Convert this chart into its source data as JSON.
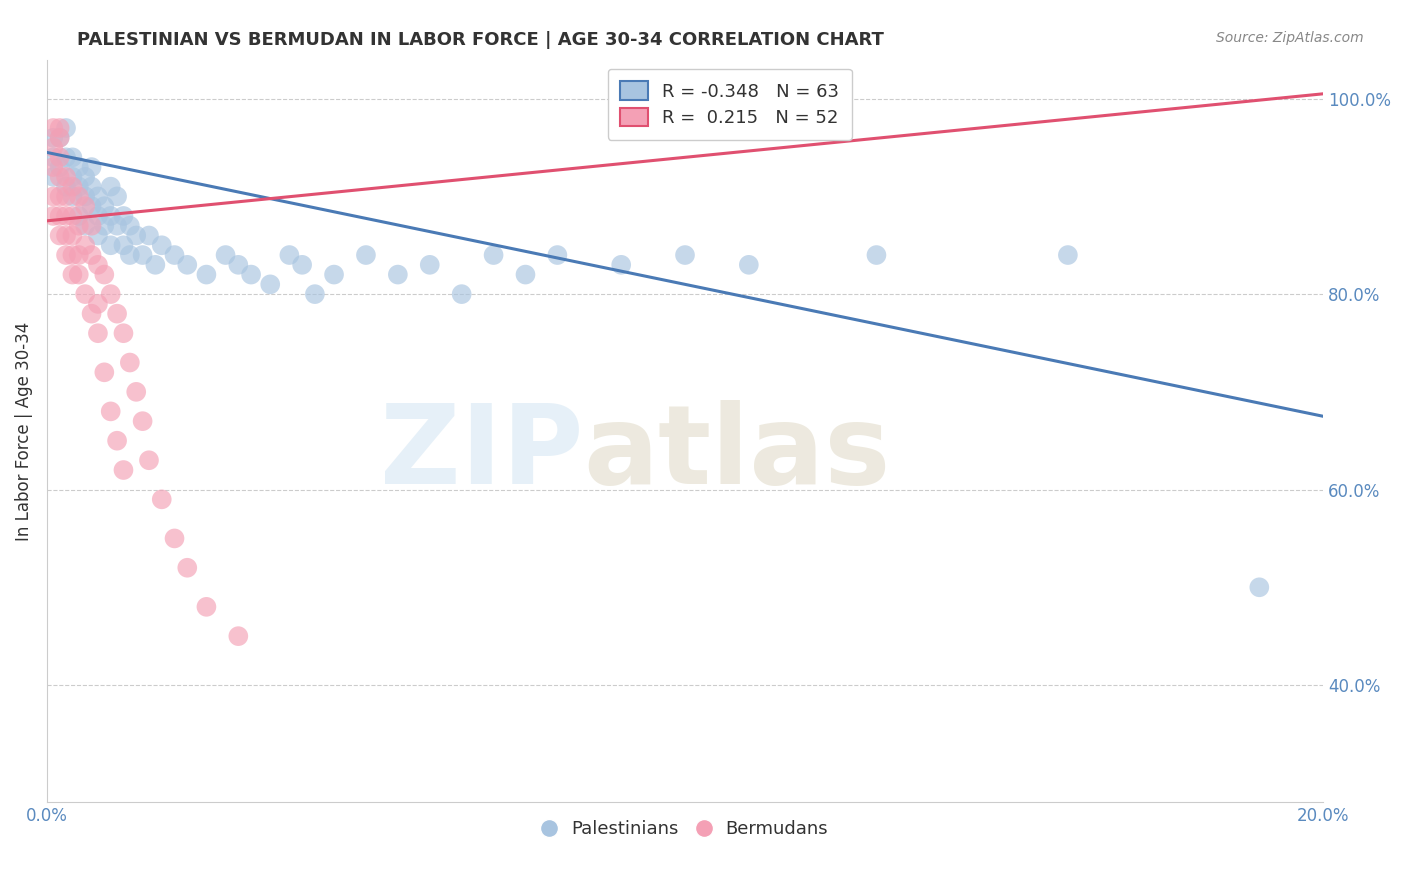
{
  "title": "PALESTINIAN VS BERMUDAN IN LABOR FORCE | AGE 30-34 CORRELATION CHART",
  "source": "Source: ZipAtlas.com",
  "ylabel": "In Labor Force | Age 30-34",
  "xlim": [
    0.0,
    0.2
  ],
  "ylim": [
    0.28,
    1.04
  ],
  "yticks": [
    0.4,
    0.6,
    0.8,
    1.0
  ],
  "yticklabels": [
    "40.0%",
    "60.0%",
    "80.0%",
    "100.0%"
  ],
  "blue_R": -0.348,
  "blue_N": 63,
  "pink_R": 0.215,
  "pink_N": 52,
  "blue_color": "#a8c4e0",
  "pink_color": "#f4a0b5",
  "blue_line_color": "#4a7ab5",
  "pink_line_color": "#e05070",
  "legend_blue": "Palestinians",
  "legend_pink": "Bermudans",
  "blue_trend_x0": 0.0,
  "blue_trend_y0": 0.945,
  "blue_trend_x1": 0.2,
  "blue_trend_y1": 0.675,
  "pink_trend_x0": 0.0,
  "pink_trend_y0": 0.875,
  "pink_trend_x1": 0.2,
  "pink_trend_y1": 1.005,
  "blue_scatter_x": [
    0.001,
    0.001,
    0.001,
    0.002,
    0.002,
    0.003,
    0.003,
    0.003,
    0.004,
    0.004,
    0.004,
    0.005,
    0.005,
    0.005,
    0.006,
    0.006,
    0.006,
    0.007,
    0.007,
    0.007,
    0.008,
    0.008,
    0.008,
    0.009,
    0.009,
    0.01,
    0.01,
    0.01,
    0.011,
    0.011,
    0.012,
    0.012,
    0.013,
    0.013,
    0.014,
    0.015,
    0.016,
    0.017,
    0.018,
    0.02,
    0.022,
    0.025,
    0.028,
    0.03,
    0.032,
    0.035,
    0.038,
    0.04,
    0.042,
    0.045,
    0.05,
    0.055,
    0.06,
    0.065,
    0.07,
    0.075,
    0.08,
    0.09,
    0.1,
    0.11,
    0.13,
    0.16,
    0.19
  ],
  "blue_scatter_y": [
    0.94,
    0.92,
    0.96,
    0.93,
    0.96,
    0.94,
    0.91,
    0.97,
    0.92,
    0.94,
    0.9,
    0.93,
    0.91,
    0.88,
    0.92,
    0.9,
    0.87,
    0.91,
    0.89,
    0.93,
    0.9,
    0.88,
    0.86,
    0.89,
    0.87,
    0.91,
    0.88,
    0.85,
    0.9,
    0.87,
    0.88,
    0.85,
    0.87,
    0.84,
    0.86,
    0.84,
    0.86,
    0.83,
    0.85,
    0.84,
    0.83,
    0.82,
    0.84,
    0.83,
    0.82,
    0.81,
    0.84,
    0.83,
    0.8,
    0.82,
    0.84,
    0.82,
    0.83,
    0.8,
    0.84,
    0.82,
    0.84,
    0.83,
    0.84,
    0.83,
    0.84,
    0.84,
    0.5
  ],
  "pink_scatter_x": [
    0.001,
    0.001,
    0.001,
    0.001,
    0.001,
    0.002,
    0.002,
    0.002,
    0.002,
    0.002,
    0.002,
    0.002,
    0.003,
    0.003,
    0.003,
    0.003,
    0.003,
    0.004,
    0.004,
    0.004,
    0.004,
    0.004,
    0.005,
    0.005,
    0.005,
    0.005,
    0.006,
    0.006,
    0.006,
    0.007,
    0.007,
    0.007,
    0.008,
    0.008,
    0.008,
    0.009,
    0.009,
    0.01,
    0.01,
    0.011,
    0.011,
    0.012,
    0.012,
    0.013,
    0.014,
    0.015,
    0.016,
    0.018,
    0.02,
    0.022,
    0.025,
    0.03
  ],
  "pink_scatter_y": [
    0.97,
    0.93,
    0.95,
    0.9,
    0.88,
    0.96,
    0.94,
    0.92,
    0.9,
    0.88,
    0.86,
    0.97,
    0.92,
    0.9,
    0.88,
    0.86,
    0.84,
    0.91,
    0.88,
    0.86,
    0.84,
    0.82,
    0.9,
    0.87,
    0.84,
    0.82,
    0.89,
    0.85,
    0.8,
    0.87,
    0.84,
    0.78,
    0.83,
    0.79,
    0.76,
    0.82,
    0.72,
    0.8,
    0.68,
    0.78,
    0.65,
    0.76,
    0.62,
    0.73,
    0.7,
    0.67,
    0.63,
    0.59,
    0.55,
    0.52,
    0.48,
    0.45
  ]
}
